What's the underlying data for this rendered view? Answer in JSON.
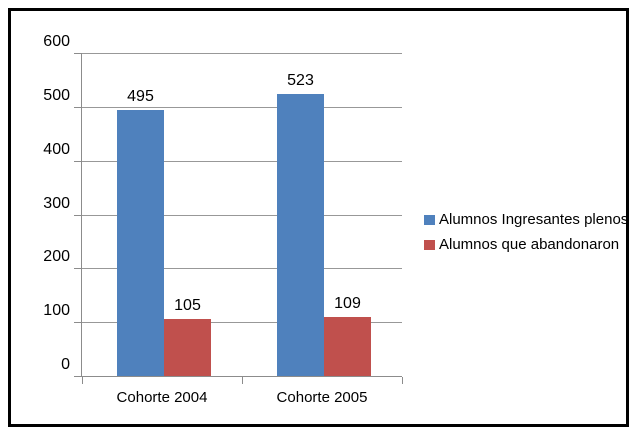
{
  "chart_data": {
    "type": "bar",
    "title": "",
    "xlabel": "",
    "ylabel": "",
    "categories": [
      "Cohorte 2004",
      "Cohorte 2005"
    ],
    "series": [
      {
        "name": "Alumnos Ingresantes plenos",
        "color": "#4F81BD",
        "values": [
          495,
          523
        ]
      },
      {
        "name": "Alumnos que abandonaron",
        "color": "#C0504D",
        "values": [
          105,
          109
        ]
      }
    ],
    "ylim": [
      0,
      600
    ],
    "yticks": [
      0,
      100,
      200,
      300,
      400,
      500,
      600
    ],
    "grid": true,
    "legend_position": "right",
    "bar_value_labels": true
  },
  "colors": {
    "axis": "#8C8C8C",
    "gridline": "#989898",
    "frame_border": "#000000",
    "background": "#FFFFFF",
    "text": "#000000"
  }
}
